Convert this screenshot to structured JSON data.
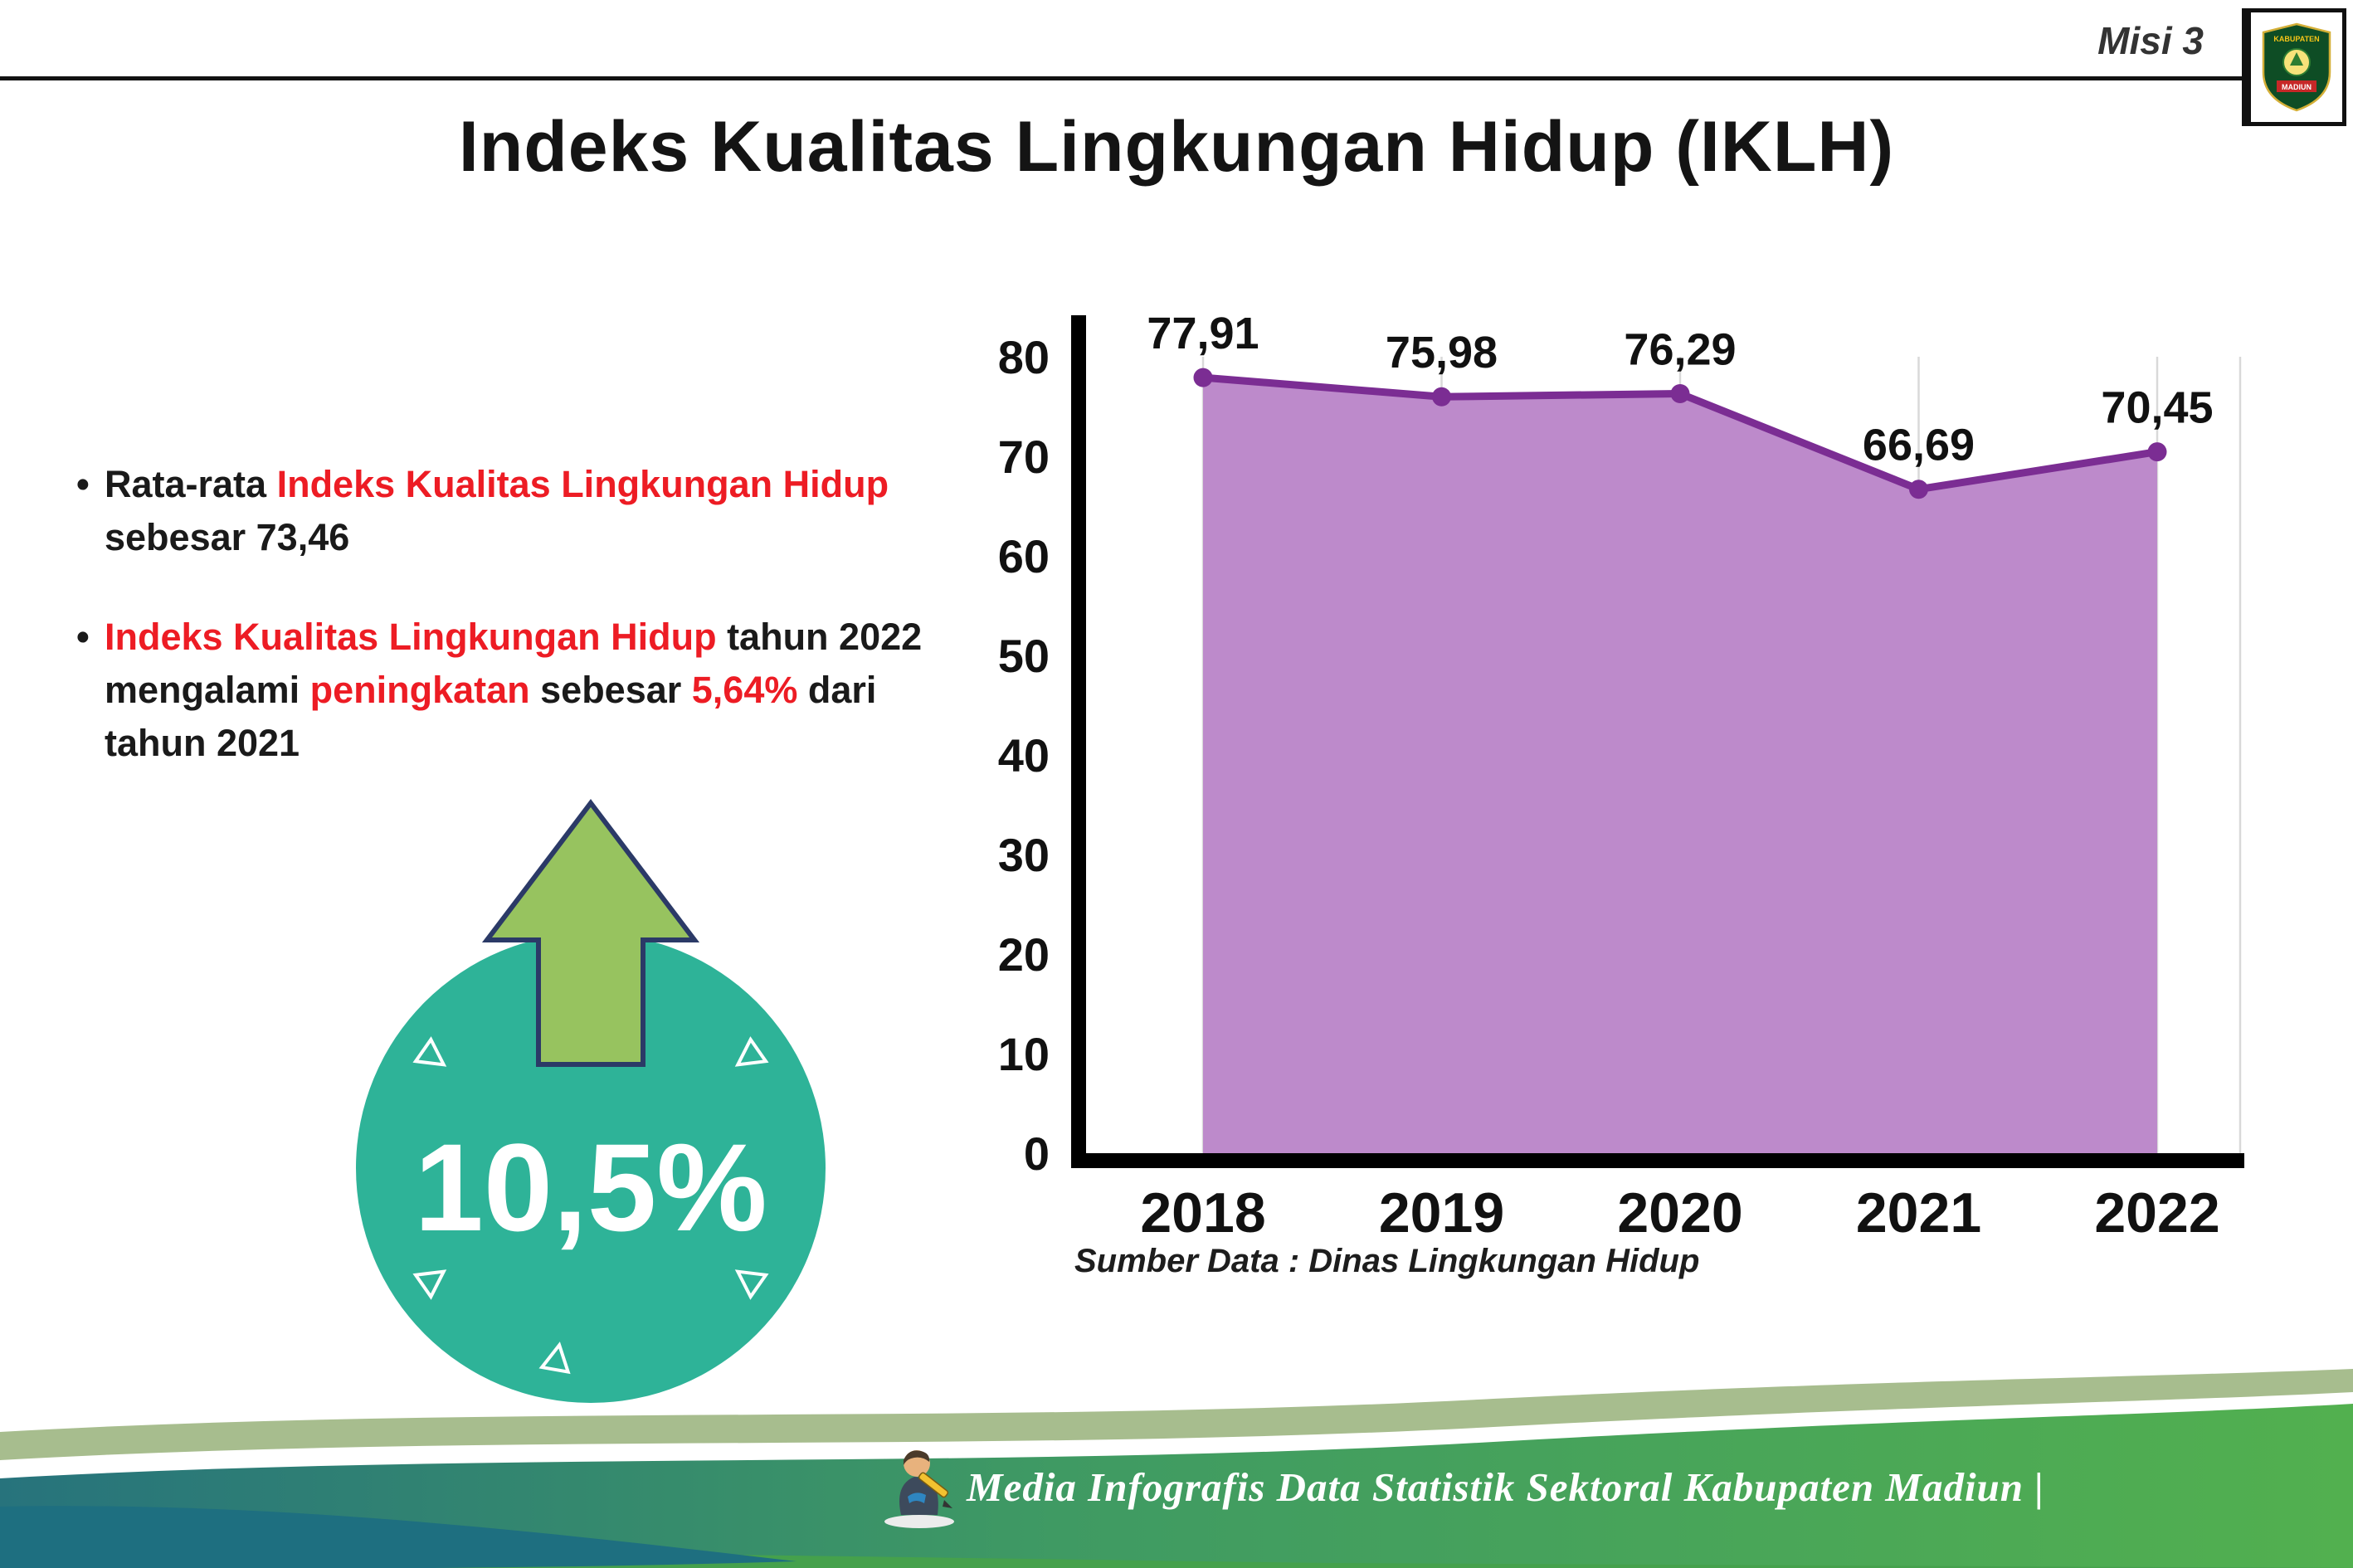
{
  "header": {
    "misi_label": "Misi 3",
    "logo": {
      "top_text": "KABUPATEN",
      "bottom_text": "MADIUN"
    }
  },
  "title": "Indeks Kualitas Lingkungan Hidup (IKLH)",
  "bullets": [
    {
      "segments": [
        {
          "text": "Rata-rata ",
          "highlight": false
        },
        {
          "text": "Indeks Kualitas Lingkungan Hidup",
          "highlight": true
        },
        {
          "text": " sebesar 73,46",
          "highlight": false
        }
      ]
    },
    {
      "segments": [
        {
          "text": "Indeks Kualitas Lingkungan Hidup",
          "highlight": true
        },
        {
          "text": " tahun 2022 mengalami ",
          "highlight": false
        },
        {
          "text": "peningkatan",
          "highlight": true
        },
        {
          "text": " sebesar ",
          "highlight": false
        },
        {
          "text": "5,64%",
          "highlight": true
        },
        {
          "text": " dari tahun 2021",
          "highlight": false
        }
      ]
    }
  ],
  "badge": {
    "value": "10,5%"
  },
  "chart_data": {
    "type": "area",
    "title": "Indeks Kualitas Lingkungan Hidup (IKLH)",
    "categories": [
      "2018",
      "2019",
      "2020",
      "2021",
      "2022"
    ],
    "values": [
      77.91,
      75.98,
      76.29,
      66.69,
      70.45
    ],
    "value_labels": [
      "77,91",
      "75,98",
      "76,29",
      "66,69",
      "70,45"
    ],
    "ylim": [
      0,
      80
    ],
    "ytick_step": 10,
    "grid": "vertical",
    "source": "Sumber Data : Dinas Lingkungan Hidup",
    "fill_color": "#bd8acb",
    "line_color": "#7b2d93"
  },
  "footer": {
    "text": "Media Infografis Data Statistik Sektoral Kabupaten Madiun |"
  },
  "colors": {
    "accent_red": "#ed1c24",
    "badge_teal": "#2eb398",
    "arrow_green": "#97c35f",
    "arrow_outline": "#2b3a67",
    "footer_sage": "#a7bd8e",
    "footer_teal": "#27737c",
    "footer_green": "#52b04f",
    "footer_dark_teal": "#1e6f80"
  }
}
